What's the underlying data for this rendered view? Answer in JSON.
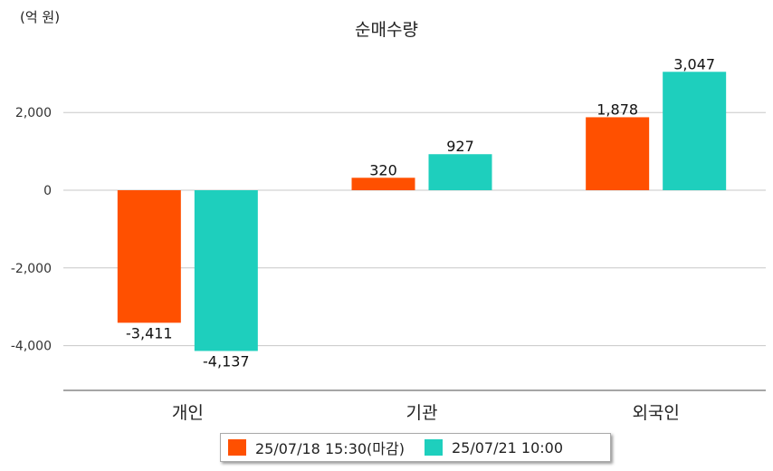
{
  "chart_data": {
    "type": "bar",
    "title": "순매수량",
    "unit_label": "(억 원)",
    "categories": [
      "개인",
      "기관",
      "외국인"
    ],
    "series": [
      {
        "name": "25/07/18 15:30(마감)",
        "color": "#ff5000",
        "values": [
          -3411,
          320,
          1878
        ],
        "labels": [
          "-3,411",
          "320",
          "1,878"
        ]
      },
      {
        "name": "25/07/21 10:00",
        "color": "#1ecfbd",
        "values": [
          -4137,
          927,
          3047
        ],
        "labels": [
          "-4,137",
          "927",
          "3,047"
        ]
      }
    ],
    "yticks": [
      {
        "value": 2000,
        "label": "2,000"
      },
      {
        "value": 0,
        "label": "0"
      },
      {
        "value": -2000,
        "label": "-2,000"
      },
      {
        "value": -4000,
        "label": "-4,000"
      }
    ],
    "ylim": [
      -5160,
      3540
    ],
    "grid": true,
    "legend_position": "bottom"
  }
}
